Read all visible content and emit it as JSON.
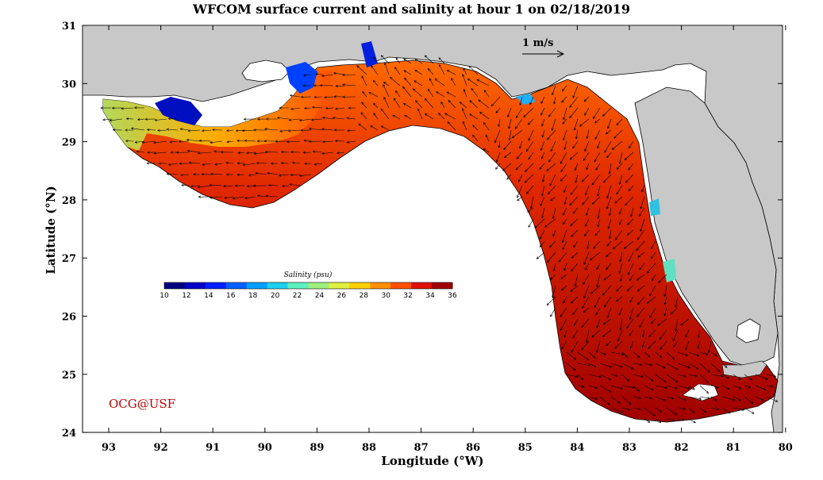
{
  "title": "WFCOM surface current and salinity at hour 1 on 02/18/2019",
  "xlabel": "Longitude (°W)",
  "ylabel": "Latitude (°N)",
  "credit": "OCG@USF",
  "reference_arrow_label": "1 m/s",
  "lon_ticks": [
    "93",
    "92",
    "91",
    "90",
    "89",
    "88",
    "87",
    "86",
    "85",
    "84",
    "83",
    "82",
    "81",
    "80"
  ],
  "lat_ticks": [
    "31",
    "30",
    "29",
    "28",
    "27",
    "26",
    "25",
    "24"
  ],
  "colorbar": {
    "title": "Salinity (psu)",
    "min": 10,
    "max": 36,
    "tick_labels": [
      "10",
      "12",
      "14",
      "16",
      "18",
      "20",
      "22",
      "24",
      "26",
      "28",
      "30",
      "32",
      "34",
      "36"
    ],
    "colors": [
      "#00007f",
      "#0000c8",
      "#0020ff",
      "#0060ff",
      "#00a0ff",
      "#20d0f0",
      "#60f0c0",
      "#a0f080",
      "#e0f040",
      "#ffd000",
      "#ff9000",
      "#ff5000",
      "#e01000",
      "#a00000"
    ]
  },
  "colors": {
    "land": "#c8c8c8",
    "ocean": "#a80000",
    "credit": "#c00000"
  }
}
